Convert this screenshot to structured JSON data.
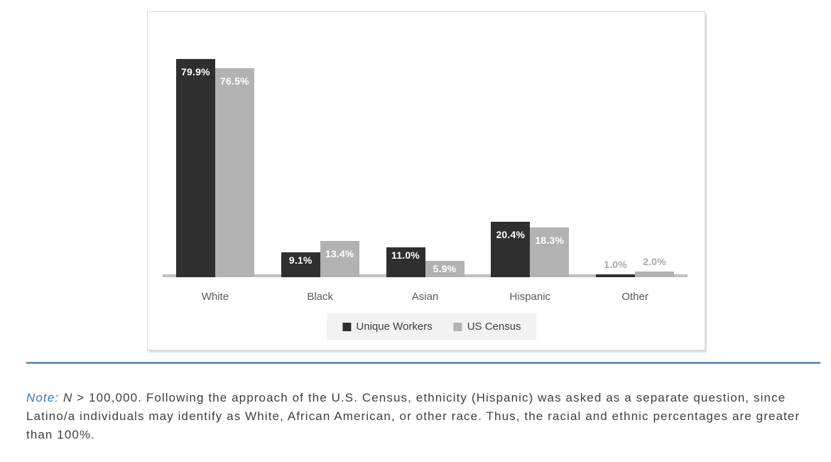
{
  "chart_data": {
    "type": "bar",
    "categories": [
      "White",
      "Black",
      "Asian",
      "Hispanic",
      "Other"
    ],
    "series": [
      {
        "name": "Unique Workers",
        "color": "#2f2f2f",
        "values": [
          79.9,
          9.1,
          11.0,
          20.4,
          1.0
        ],
        "labels": [
          "79.9%",
          "9.1%",
          "11.0%",
          "20.4%",
          "1.0%"
        ]
      },
      {
        "name": "US Census",
        "color": "#b2b2b2",
        "values": [
          76.5,
          13.4,
          5.9,
          18.3,
          2.0
        ],
        "labels": [
          "76.5%",
          "13.4%",
          "5.9%",
          "18.3%",
          "2.0%"
        ]
      }
    ],
    "title": "",
    "xlabel": "",
    "ylabel": "",
    "ylim": [
      0,
      97
    ],
    "grid": false,
    "y_axis_ticks_visible": false,
    "legend_position": "bottom-inside",
    "data_label_position": "inside-end, outside-end when bar too short",
    "colors": {
      "inside_label": "#ffffff",
      "outside_label": "#a8a8a8",
      "axis_line": "#bfbfbf",
      "category_label": "#595959",
      "legend_text": "#404040",
      "legend_background": "#f2f2f2",
      "card_border": "#d9d9d9"
    }
  },
  "figure": {
    "divider_color": "#4d7dbd",
    "note": {
      "label": "Note:",
      "n": "N",
      "body": " > 100,000. Following the approach of the U.S. Census, ethnicity (Hispanic) was asked as a separate question, since Latino/a individuals may identify as White, African American, or other race. Thus, the racial and ethnic percentages are greater than 100%.",
      "label_color": "#3878b8"
    }
  }
}
